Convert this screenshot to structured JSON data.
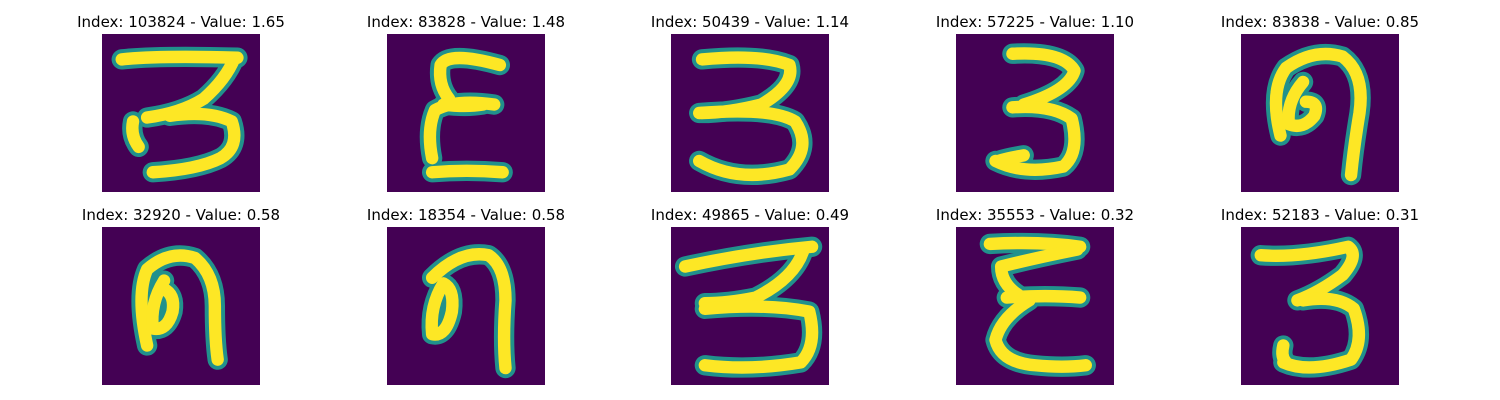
{
  "colors": {
    "background": "#440154",
    "stroke": "#fde725",
    "edge": "#21918c"
  },
  "panels": [
    {
      "title": "Index: 103824 - Value: 1.65"
    },
    {
      "title": "Index: 83828 - Value: 1.48"
    },
    {
      "title": "Index: 50439 - Value: 1.14"
    },
    {
      "title": "Index: 57225 - Value: 1.10"
    },
    {
      "title": "Index: 83838 - Value: 0.85"
    },
    {
      "title": "Index: 32920 - Value: 0.58"
    },
    {
      "title": "Index: 18354 - Value: 0.58"
    },
    {
      "title": "Index: 49865 - Value: 0.49"
    },
    {
      "title": "Index: 35553 - Value: 0.32"
    },
    {
      "title": "Index: 52183 - Value: 0.31"
    }
  ]
}
